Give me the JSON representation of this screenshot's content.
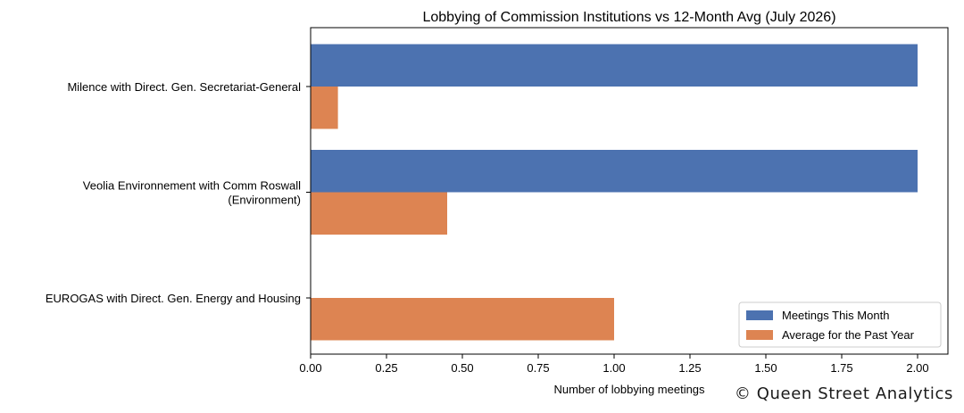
{
  "chart_data": {
    "type": "bar",
    "orientation": "horizontal",
    "title": "Lobbying of Commission Institutions vs 12-Month Avg (July 2026)",
    "xlabel": "Number of lobbying meetings",
    "ylabel": "",
    "xlim": [
      0,
      2.1
    ],
    "x_ticks": [
      "0.00",
      "0.25",
      "0.50",
      "0.75",
      "1.00",
      "1.25",
      "1.50",
      "1.75",
      "2.00"
    ],
    "x_tick_values": [
      0,
      0.25,
      0.5,
      0.75,
      1.0,
      1.25,
      1.5,
      1.75,
      2.0
    ],
    "categories": [
      [
        "Milence with Direct. Gen. Secretariat-General"
      ],
      [
        "Veolia Environnement with Comm Roswall",
        "(Environment)"
      ],
      [
        "EUROGAS with Direct. Gen. Energy and Housing"
      ]
    ],
    "series": [
      {
        "name": "Meetings This Month",
        "color": "#4c72b0",
        "values": [
          2,
          2,
          0
        ]
      },
      {
        "name": "Average for the Past Year",
        "color": "#dd8452",
        "values": [
          0.09,
          0.45,
          1.0
        ]
      }
    ],
    "grid": false,
    "legend_position": "lower-right"
  },
  "credit": "© Queen Street Analytics"
}
